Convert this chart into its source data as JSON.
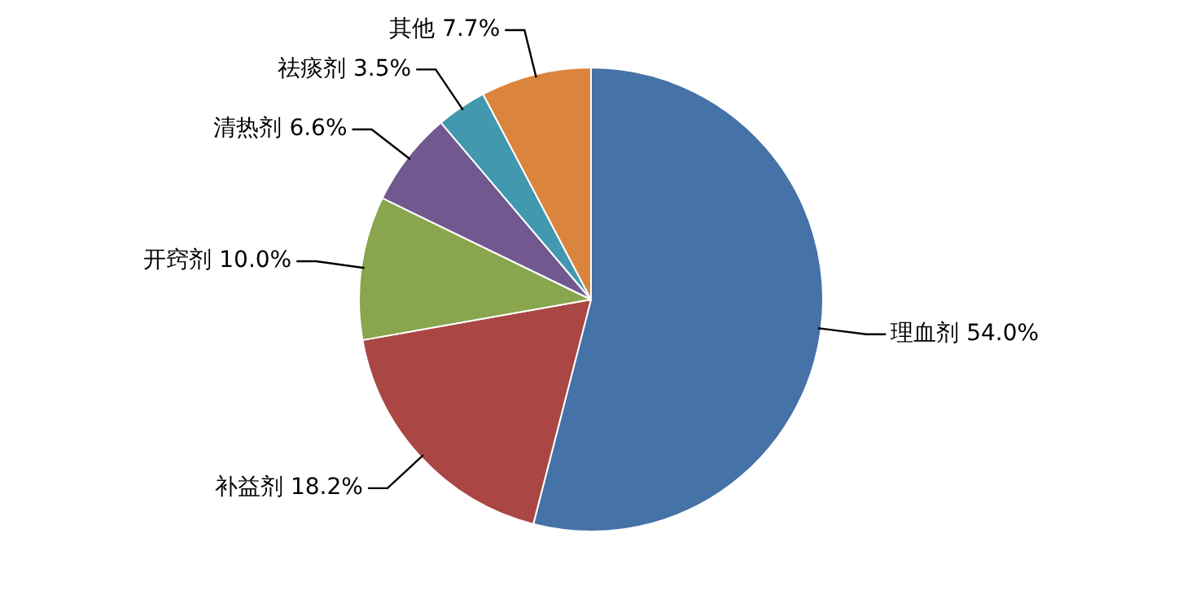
{
  "chart_data": {
    "type": "pie",
    "categories": [
      "理血剂",
      "补益剂",
      "开窍剂",
      "清热剂",
      "祛痰剂",
      "其他"
    ],
    "values": [
      54.0,
      18.2,
      10.0,
      6.6,
      3.5,
      7.7
    ],
    "value_labels": [
      "54.0%",
      "18.2%",
      "10.0%",
      "6.6%",
      "3.5%",
      "7.7%"
    ],
    "colors": [
      "#4572a7",
      "#aa4643",
      "#89a54e",
      "#71588f",
      "#4198af",
      "#db843d"
    ],
    "legend": false
  }
}
